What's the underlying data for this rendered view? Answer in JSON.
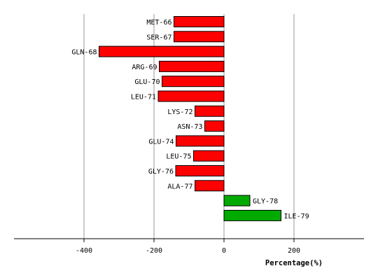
{
  "chart_data": {
    "type": "bar",
    "orientation": "horizontal",
    "title": "",
    "xlabel": "Percentage(%)",
    "ylabel": "",
    "xlim": [
      -600,
      400
    ],
    "x_ticks": [
      -400,
      -200,
      0,
      200
    ],
    "grid": true,
    "legend": "none",
    "negative_color": "#ff0000",
    "positive_color": "#00aa00",
    "categories": [
      "MET-66",
      "SER-67",
      "GLN-68",
      "ARG-69",
      "GLU-70",
      "LEU-71",
      "LYS-72",
      "ASN-73",
      "GLU-74",
      "LEU-75",
      "GLY-76",
      "ALA-77",
      "GLY-78",
      "ILE-79"
    ],
    "values": [
      -143,
      -143,
      -357,
      -185,
      -177,
      -188,
      -83,
      -55,
      -137,
      -87,
      -138,
      -83,
      74,
      163
    ]
  }
}
